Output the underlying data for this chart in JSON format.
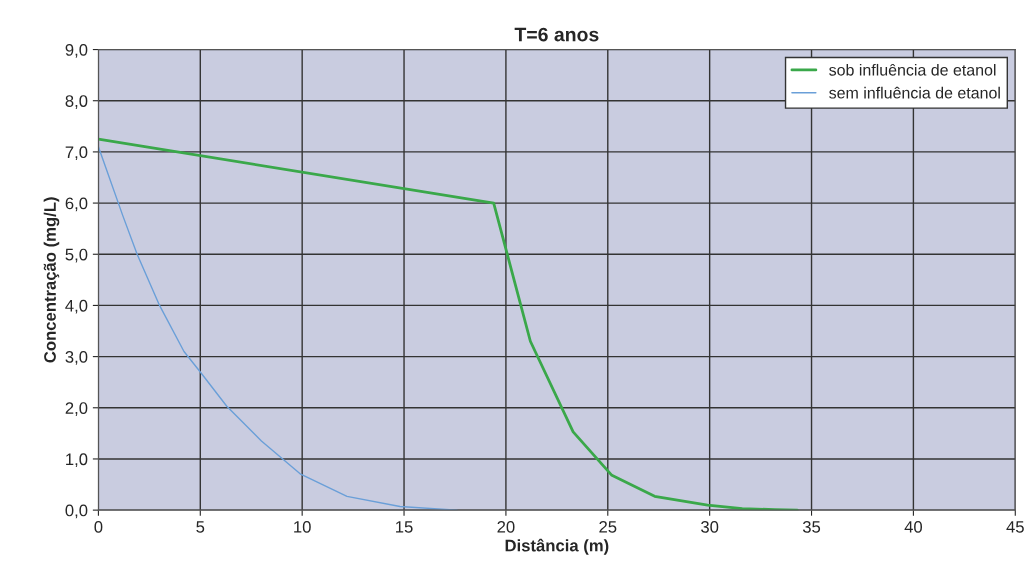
{
  "chart_data": {
    "type": "line",
    "title": "T=6 anos",
    "xlabel": "Distância (m)",
    "ylabel": "Concentração (mg/L)",
    "series": [
      {
        "name": "sob influência de etanol",
        "color": "#3aa84a",
        "x": [
          0,
          19.4,
          21.2,
          23.3,
          25.2,
          27.3,
          29.9,
          31.6,
          33.2,
          34.3
        ],
        "values": [
          7.25,
          6.0,
          3.3,
          1.53,
          0.68,
          0.27,
          0.1,
          0.03,
          0.01,
          0.0
        ]
      },
      {
        "name": "sem influência de etanol",
        "color": "#6a9fd8",
        "x": [
          0,
          1.2,
          1.9,
          3.0,
          4.2,
          5.0,
          6.3,
          8.0,
          9.9,
          12.2,
          14.8,
          17.6
        ],
        "values": [
          7.1,
          5.75,
          5.0,
          4.0,
          3.1,
          2.7,
          2.03,
          1.35,
          0.71,
          0.27,
          0.07,
          0.0
        ]
      }
    ],
    "xlim": [
      0,
      45
    ],
    "xticks": [
      0,
      5,
      10,
      15,
      20,
      25,
      30,
      35,
      40,
      45
    ],
    "ylim": [
      0,
      9
    ],
    "yticks": [
      {
        "value": 0,
        "label": "0,0"
      },
      {
        "value": 1,
        "label": "1,0"
      },
      {
        "value": 2,
        "label": "2,0"
      },
      {
        "value": 3,
        "label": "3,0"
      },
      {
        "value": 4,
        "label": "4,0"
      },
      {
        "value": 5,
        "label": "5,0"
      },
      {
        "value": 6,
        "label": "6,0"
      },
      {
        "value": 7,
        "label": "7,0"
      },
      {
        "value": 8,
        "label": "8,0"
      },
      {
        "value": 9,
        "label": "9,0"
      }
    ],
    "grid": true,
    "legend": "top right",
    "marker": "none",
    "line_style": "solid"
  }
}
